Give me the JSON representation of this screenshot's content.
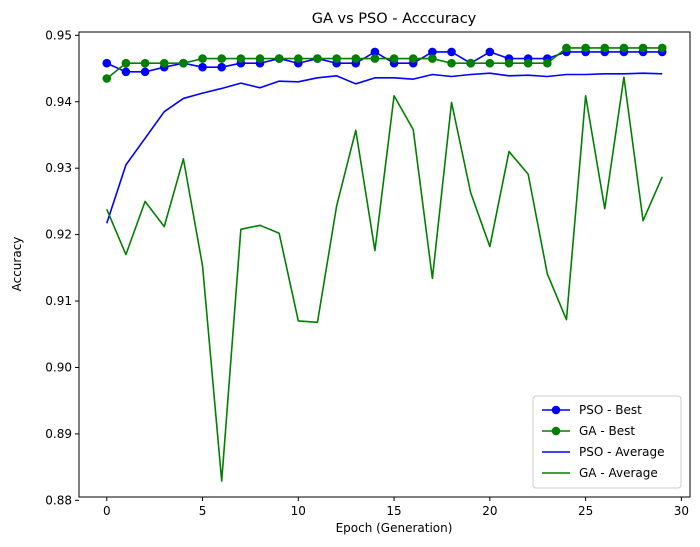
{
  "chart_data": {
    "type": "line",
    "title": "GA vs PSO - Acccuracy",
    "xlabel": "Epoch (Generation)",
    "ylabel": "Accuracy",
    "xlim": [
      -1.45,
      30.45
    ],
    "ylim": [
      0.8805,
      0.9505
    ],
    "xticks": [
      0,
      5,
      10,
      15,
      20,
      25,
      30
    ],
    "yticks": [
      0.88,
      0.89,
      0.9,
      0.91,
      0.92,
      0.93,
      0.94,
      0.95
    ],
    "ytick_labels": [
      "0.88",
      "0.89",
      "0.90",
      "0.91",
      "0.92",
      "0.93",
      "0.94",
      "0.95"
    ],
    "grid": false,
    "legend_position": "lower-right",
    "x": [
      0,
      1,
      2,
      3,
      4,
      5,
      6,
      7,
      8,
      9,
      10,
      11,
      12,
      13,
      14,
      15,
      16,
      17,
      18,
      19,
      20,
      21,
      22,
      23,
      24,
      25,
      26,
      27,
      28,
      29
    ],
    "series": [
      {
        "name": "PSO - Best",
        "color": "#0000ff",
        "marker": "circle",
        "values": [
          0.9458,
          0.9445,
          0.9445,
          0.9452,
          0.9458,
          0.9452,
          0.9452,
          0.9458,
          0.9458,
          0.9465,
          0.9458,
          0.9465,
          0.9458,
          0.9458,
          0.9475,
          0.9458,
          0.9458,
          0.9475,
          0.9475,
          0.9458,
          0.9475,
          0.9465,
          0.9465,
          0.9465,
          0.9475,
          0.9475,
          0.9475,
          0.9475,
          0.9475,
          0.9475
        ]
      },
      {
        "name": "GA - Best",
        "color": "#008000",
        "marker": "circle",
        "values": [
          0.9435,
          0.9458,
          0.9458,
          0.9458,
          0.9458,
          0.9465,
          0.9465,
          0.9465,
          0.9465,
          0.9465,
          0.9465,
          0.9465,
          0.9465,
          0.9465,
          0.9465,
          0.9465,
          0.9465,
          0.9465,
          0.9458,
          0.9458,
          0.9458,
          0.9458,
          0.9458,
          0.9458,
          0.9481,
          0.9481,
          0.9481,
          0.9481,
          0.9481,
          0.9481
        ]
      },
      {
        "name": "PSO - Average",
        "color": "#0000ff",
        "marker": "none",
        "values": [
          0.9217,
          0.9305,
          0.9345,
          0.9385,
          0.9405,
          0.9413,
          0.942,
          0.9428,
          0.9421,
          0.9431,
          0.943,
          0.9436,
          0.9439,
          0.9427,
          0.9436,
          0.9436,
          0.9434,
          0.9441,
          0.9438,
          0.9441,
          0.9443,
          0.9439,
          0.944,
          0.9438,
          0.9441,
          0.9441,
          0.9442,
          0.9442,
          0.9443,
          0.9442
        ]
      },
      {
        "name": "GA - Average",
        "color": "#008000",
        "marker": "none",
        "values": [
          0.9238,
          0.917,
          0.925,
          0.9212,
          0.9314,
          0.9153,
          0.8829,
          0.9208,
          0.9214,
          0.9202,
          0.907,
          0.9068,
          0.9243,
          0.9357,
          0.9176,
          0.9409,
          0.9358,
          0.9134,
          0.9399,
          0.9263,
          0.9182,
          0.9325,
          0.9291,
          0.9141,
          0.9072,
          0.9409,
          0.9239,
          0.9437,
          0.9221,
          0.9287
        ]
      }
    ]
  }
}
